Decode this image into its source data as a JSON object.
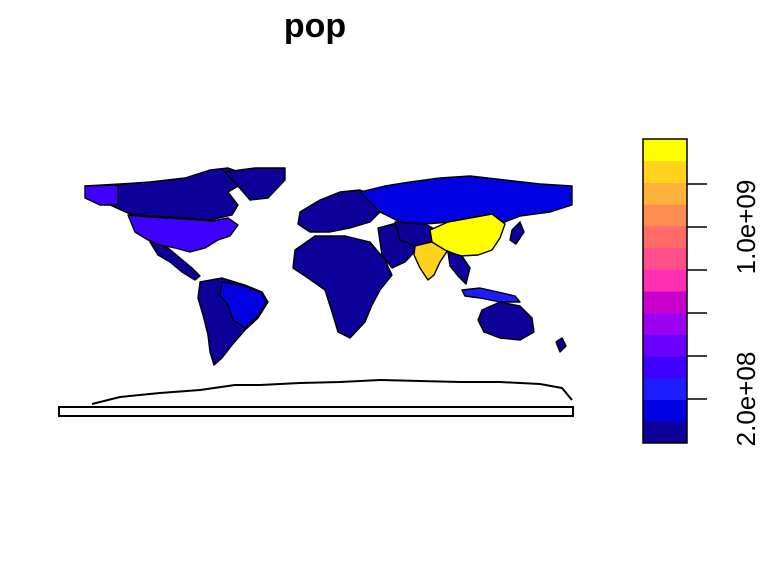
{
  "title": "pop",
  "colors": {
    "ocean": "#ffffff",
    "border": "#000000",
    "palette": [
      "#0c0099",
      "#0000e0",
      "#1c1cff",
      "#3e00ff",
      "#6a00ff",
      "#9c00f0",
      "#c800cc",
      "#ff2fb0",
      "#ff4f8a",
      "#ff6a6a",
      "#ff8c52",
      "#ffb23a",
      "#ffd21e",
      "#ffff00"
    ]
  },
  "regions": [
    {
      "name": "China",
      "color": "#ffff00"
    },
    {
      "name": "India",
      "color": "#ffd21e"
    },
    {
      "name": "USA",
      "color": "#3e00ff"
    },
    {
      "name": "Indonesia",
      "color": "#1c1cff"
    },
    {
      "name": "Brazil",
      "color": "#0000e0"
    },
    {
      "name": "Russia",
      "color": "#0000e0"
    },
    {
      "name": "other",
      "color": "#0c0099"
    }
  ],
  "legend": {
    "type": "color-bar",
    "orientation": "vertical",
    "tick_labels": [
      "2.0e+08",
      "1.0e+09"
    ]
  }
}
